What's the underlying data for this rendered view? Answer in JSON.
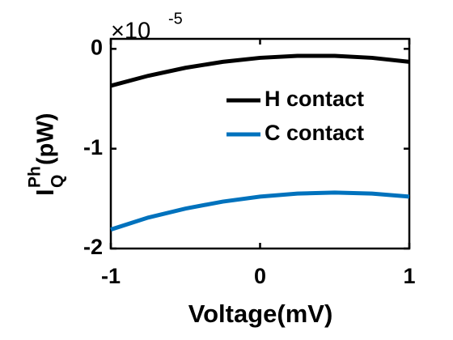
{
  "chart_data": {
    "type": "line",
    "xlabel": "Voltage(mV)",
    "ylabel": {
      "base": "I",
      "sub": "Q",
      "sup": "Ph",
      "unit": "(pW)"
    },
    "y_exponent": {
      "base": "×10",
      "power": "-5"
    },
    "x": [
      -1,
      -0.75,
      -0.5,
      -0.25,
      0,
      0.25,
      0.5,
      0.75,
      1
    ],
    "series": [
      {
        "name": "H contact",
        "color": "#000000",
        "values": [
          -0.37,
          -0.27,
          -0.19,
          -0.13,
          -0.09,
          -0.07,
          -0.07,
          -0.09,
          -0.13
        ]
      },
      {
        "name": "C contact",
        "color": "#0072bd",
        "values": [
          -1.81,
          -1.69,
          -1.6,
          -1.53,
          -1.48,
          -1.45,
          -1.44,
          -1.45,
          -1.48
        ]
      }
    ],
    "xlim": [
      -1,
      1
    ],
    "xticks": [
      -1,
      0,
      1
    ],
    "ylim": [
      -2,
      0.1
    ],
    "yticks": [
      -2,
      -1,
      0
    ],
    "legend": "upper right",
    "grid": false
  }
}
